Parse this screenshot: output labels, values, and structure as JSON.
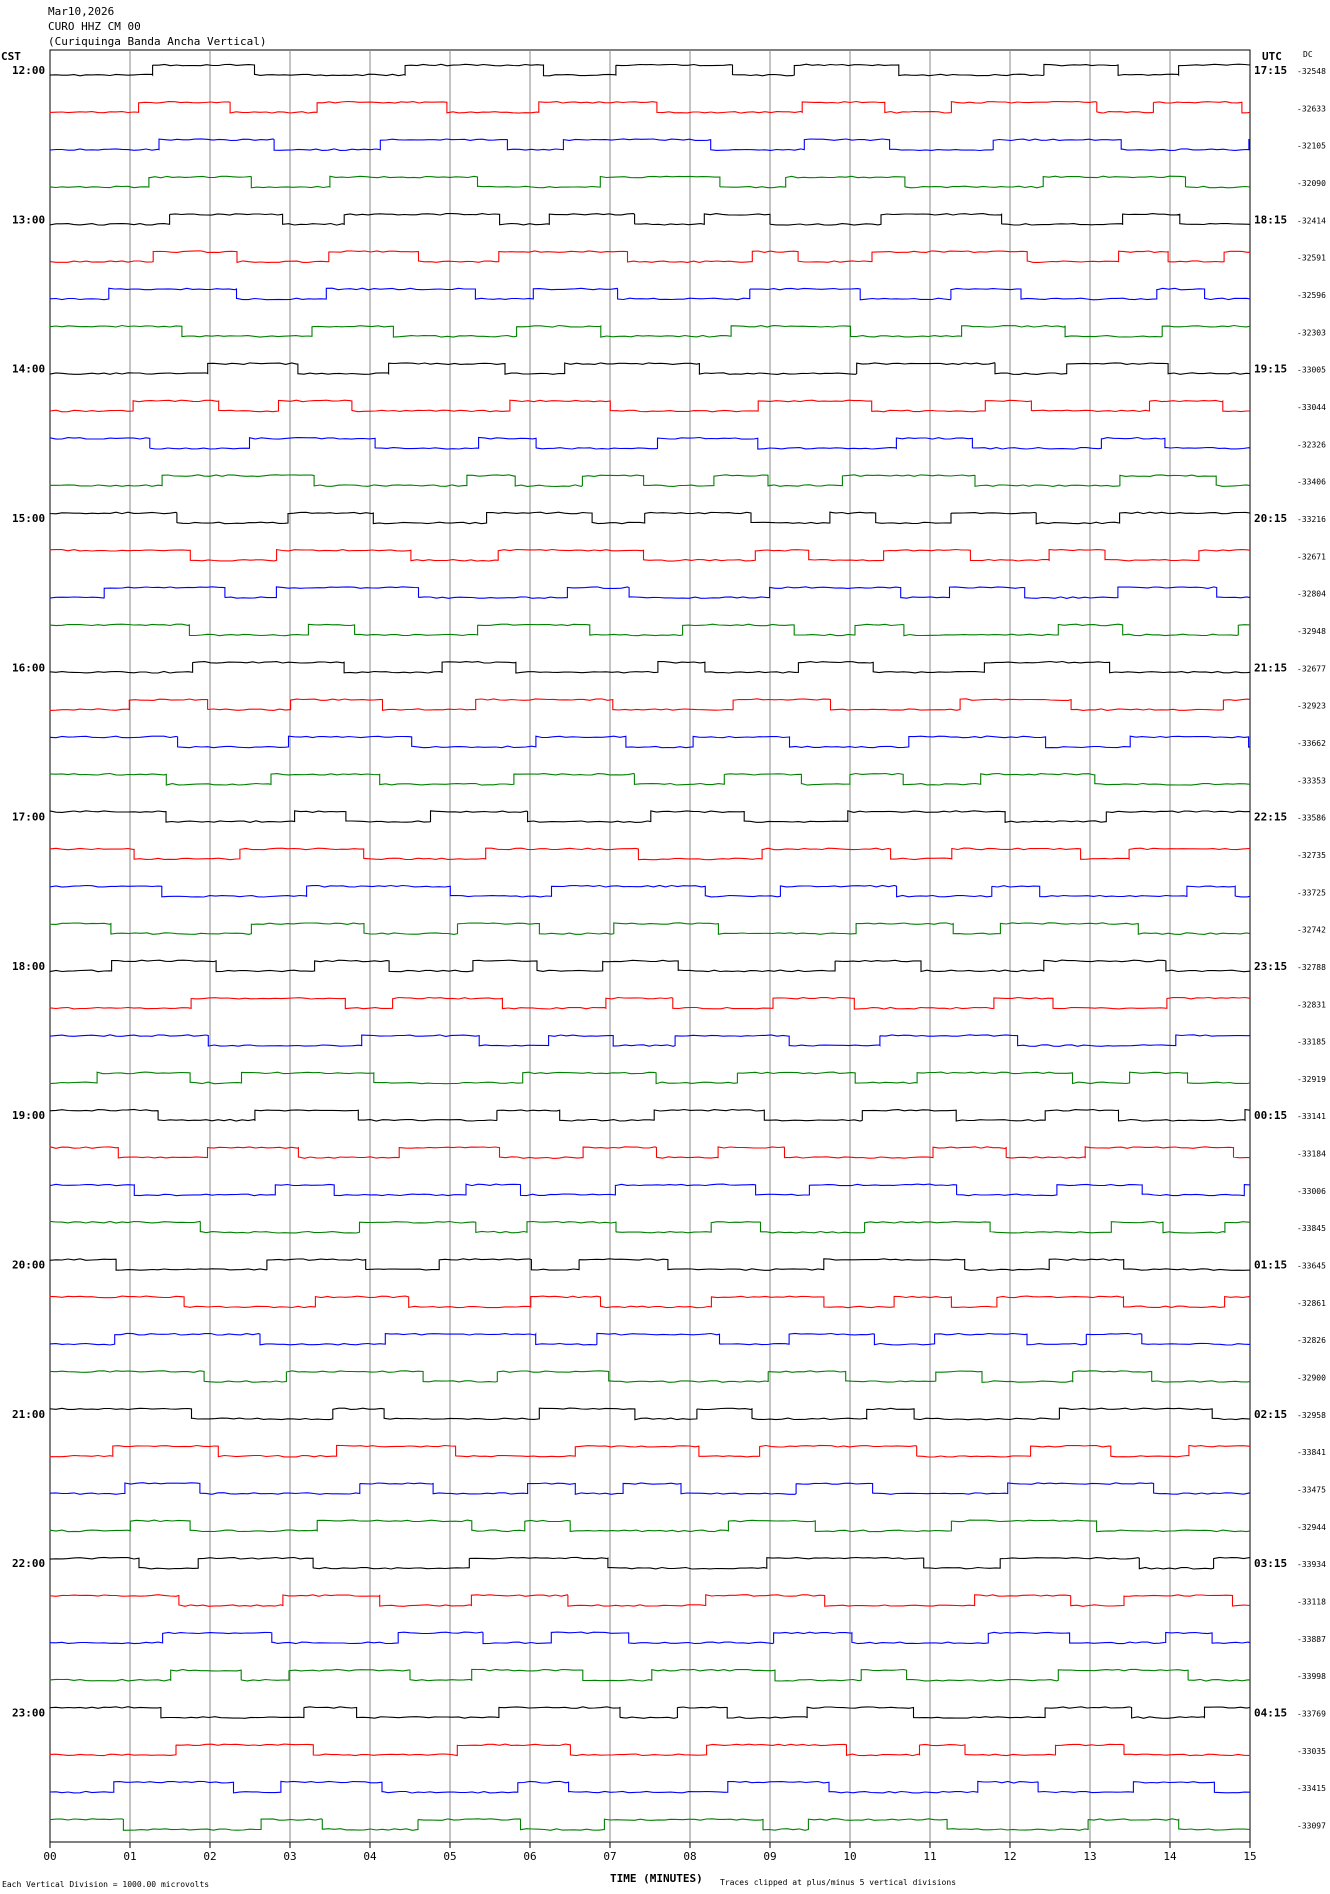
{
  "header": {
    "date": "Mar10,2026",
    "station": "CURO HHZ CM 00",
    "name": "(Curiquinga Banda Ancha Vertical)"
  },
  "labels": {
    "left_axis": "CST",
    "right_axis": "UTC",
    "dc_column": "DC",
    "x_title": "TIME (MINUTES)",
    "footer_left": "Each Vertical Division = 1000.00 microvolts",
    "footer_right": "Traces clipped at plus/minus 5 vertical divisions"
  },
  "colors": {
    "trace_cycle": [
      "#000000",
      "#ff0000",
      "#0000ff",
      "#008000"
    ],
    "grid": "#888888"
  },
  "chart_data": {
    "type": "line",
    "title": "",
    "xlabel": "TIME (MINUTES)",
    "xlim": [
      0,
      15
    ],
    "x_ticks": [
      "00",
      "01",
      "02",
      "03",
      "04",
      "05",
      "06",
      "07",
      "08",
      "09",
      "10",
      "11",
      "12",
      "13",
      "14",
      "15"
    ],
    "left_hour_labels": [
      "12:00",
      "13:00",
      "14:00",
      "15:00",
      "16:00",
      "17:00",
      "18:00",
      "19:00",
      "20:00",
      "21:00",
      "22:00",
      "23:00"
    ],
    "right_hour_labels": [
      "17:15",
      "18:15",
      "19:15",
      "20:15",
      "21:15",
      "22:15",
      "23:15",
      "00:15",
      "01:15",
      "02:15",
      "03:15",
      "04:15"
    ],
    "trace_dc_offsets": [
      "-32548",
      "-32633",
      "-32105",
      "-32090",
      "-32414",
      "-32591",
      "-32596",
      "-32303",
      "-33005",
      "-33044",
      "-32326",
      "-33406",
      "-33216",
      "-32671",
      "-32804",
      "-32948",
      "-32677",
      "-32923",
      "-33662",
      "-33353",
      "-33586",
      "-32735",
      "-33725",
      "-32742",
      "-32788",
      "-32831",
      "-33185",
      "-32919",
      "-33141",
      "-33184",
      "-33006",
      "-33845",
      "-33645",
      "-32861",
      "-32826",
      "-32900",
      "-32958",
      "-33841",
      "-33475",
      "-32944",
      "-33934",
      "-33118",
      "-33887",
      "-33998",
      "-33769",
      "-33035",
      "-33415",
      "-33097"
    ],
    "minutes_per_trace": 15,
    "vertical_division_microvolts": 1000.0,
    "grid": true
  }
}
